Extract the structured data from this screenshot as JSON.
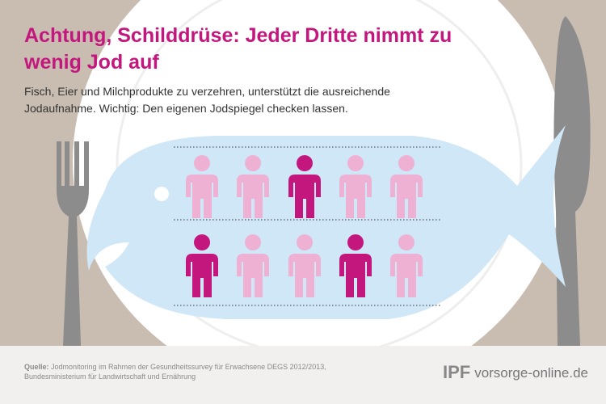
{
  "header": {
    "title": "Achtung, Schilddrüse: Jeder Dritte nimmt zu wenig Jod auf",
    "subtitle": "Fisch, Eier und Milchprodukte zu verzehren, unterstützt die ausreichende Jodaufnahme. Wichtig: Den eigenen Jodspiegel checken lassen."
  },
  "pictogram": {
    "rows": [
      [
        false,
        false,
        true,
        false,
        false
      ],
      [
        true,
        false,
        false,
        true,
        false
      ]
    ],
    "color": "#eeb1d4",
    "highlight_color": "#c4177e"
  },
  "footer": {
    "source_label": "Quelle:",
    "source": "Jodmonitoring im Rahmen der Gesundheitssurvey für Erwachsene DEGS 2012/2013, Bundesministerium für Landwirtschaft und Ernährung",
    "logo": "IPF",
    "brand": "vorsorge-online.de"
  }
}
